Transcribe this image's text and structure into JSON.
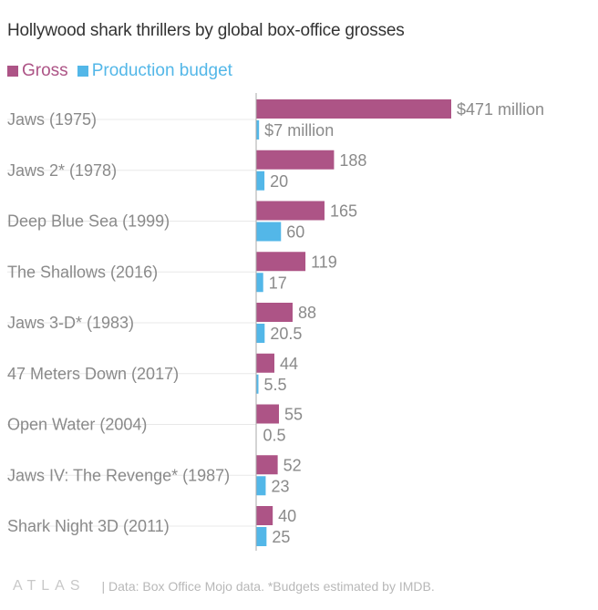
{
  "colors": {
    "gross": "#ad5486",
    "budget": "#53b7e8",
    "label": "#8a8a8a",
    "title": "#333333",
    "grid": "#e8e8e8"
  },
  "footer": {
    "logo": "ATLAS",
    "note": "| Data: Box Office Mojo data. *Budgets estimated by IMDB."
  },
  "chart_data": {
    "type": "bar",
    "orientation": "horizontal",
    "title": "Hollywood shark thrillers by global box-office grosses",
    "categories": [
      "Jaws (1975)",
      "Jaws 2* (1978)",
      "Deep Blue Sea (1999)",
      "The Shallows (2016)",
      "Jaws 3-D* (1983)",
      "47 Meters Down (2017)",
      "Open Water (2004)",
      "Jaws IV: The Revenge* (1987)",
      "Shark Night 3D (2011)"
    ],
    "series": [
      {
        "name": "Gross",
        "values": [
          471,
          188,
          165,
          119,
          88,
          44,
          55,
          52,
          40
        ],
        "value_labels": [
          "$471 million",
          "188",
          "165",
          "119",
          "88",
          "44",
          "55",
          "52",
          "40"
        ]
      },
      {
        "name": "Production budget",
        "values": [
          7,
          20,
          60,
          17,
          20.5,
          5.5,
          0.5,
          23,
          25
        ],
        "value_labels": [
          "$7 million",
          "20",
          "60",
          "17",
          "20.5",
          "5.5",
          "0.5",
          "23",
          "25"
        ]
      }
    ],
    "xlim": [
      0,
      471
    ],
    "legend": "top-left",
    "grid": false
  }
}
